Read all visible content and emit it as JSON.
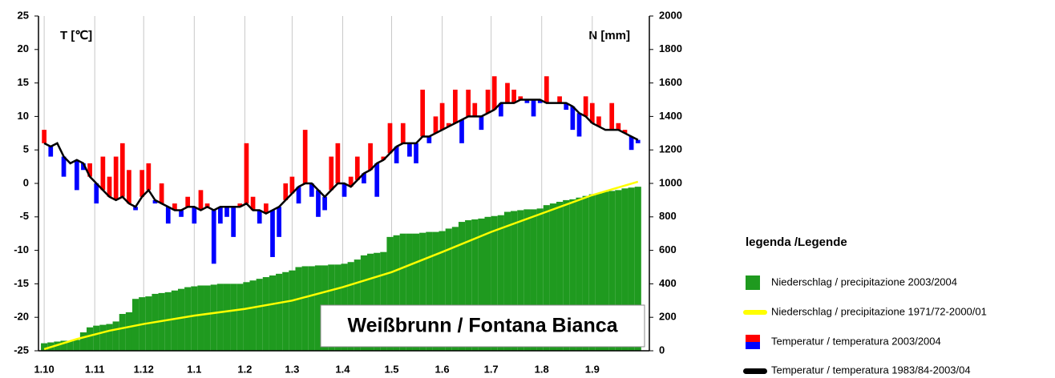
{
  "chart_data": {
    "type": "climate",
    "ylabel": "T [℃]",
    "y2label": "N [mm]",
    "annotation": "Weißbrunn / Fontana Bianca",
    "legend_title": "legenda /Legende",
    "xlim": [
      -3.5,
      371
    ],
    "xticks": [
      {
        "value": 0,
        "label": "1.10"
      },
      {
        "value": 31,
        "label": "1.11"
      },
      {
        "value": 61,
        "label": "1.12"
      },
      {
        "value": 92,
        "label": "1.1"
      },
      {
        "value": 123,
        "label": "1.2"
      },
      {
        "value": 152,
        "label": "1.3"
      },
      {
        "value": 183,
        "label": "1.4"
      },
      {
        "value": 213,
        "label": "1.5"
      },
      {
        "value": 244,
        "label": "1.6"
      },
      {
        "value": 274,
        "label": "1.7"
      },
      {
        "value": 305,
        "label": "1.8"
      },
      {
        "value": 336,
        "label": "1.9"
      }
    ],
    "ylim": [
      -25,
      25
    ],
    "yticks": [
      -25,
      -20,
      -15,
      -10,
      -5,
      0,
      5,
      10,
      15,
      20,
      25
    ],
    "y2lim": [
      0,
      2000
    ],
    "y2ticks": [
      0,
      200,
      400,
      600,
      800,
      1000,
      1200,
      1400,
      1600,
      1800,
      2000
    ],
    "grid": true,
    "x": [
      0,
      4,
      8,
      12,
      16,
      20,
      24,
      28,
      32,
      36,
      40,
      44,
      48,
      52,
      56,
      60,
      64,
      68,
      72,
      76,
      80,
      84,
      88,
      92,
      96,
      100,
      104,
      108,
      112,
      116,
      120,
      124,
      128,
      132,
      136,
      140,
      144,
      148,
      152,
      156,
      160,
      164,
      168,
      172,
      176,
      180,
      184,
      188,
      192,
      196,
      200,
      204,
      208,
      212,
      216,
      220,
      224,
      228,
      232,
      236,
      240,
      244,
      248,
      252,
      256,
      260,
      264,
      268,
      272,
      276,
      280,
      284,
      288,
      292,
      296,
      300,
      304,
      308,
      312,
      316,
      320,
      324,
      328,
      332,
      336,
      340,
      344,
      348,
      352,
      356,
      360,
      364
    ],
    "series": [
      {
        "name": "Niederschlag / precipitazione 2003/2004",
        "color": "#1f9a1f",
        "axis": "y2",
        "kind": "bar",
        "values": [
          45,
          50,
          55,
          60,
          60,
          65,
          110,
          140,
          150,
          155,
          160,
          175,
          220,
          230,
          310,
          320,
          325,
          340,
          345,
          350,
          360,
          370,
          380,
          385,
          390,
          390,
          395,
          400,
          400,
          400,
          400,
          410,
          420,
          430,
          440,
          450,
          460,
          470,
          480,
          500,
          505,
          505,
          510,
          510,
          515,
          515,
          520,
          530,
          545,
          570,
          580,
          585,
          590,
          680,
          690,
          700,
          700,
          700,
          705,
          710,
          710,
          715,
          730,
          740,
          770,
          780,
          785,
          790,
          800,
          805,
          810,
          830,
          835,
          840,
          845,
          845,
          850,
          870,
          880,
          890,
          900,
          905,
          915,
          925,
          935,
          940,
          950,
          955,
          960,
          970,
          975,
          980
        ]
      },
      {
        "name": "Niederschlag / precipitazione 1971/72-2000/01",
        "color": "#ffff00",
        "axis": "y2",
        "kind": "line",
        "x": [
          0,
          20,
          40,
          61,
          92,
          123,
          152,
          183,
          213,
          244,
          274,
          305,
          336,
          364
        ],
        "values": [
          10,
          70,
          120,
          160,
          210,
          250,
          300,
          380,
          470,
          590,
          710,
          820,
          930,
          1010
        ]
      },
      {
        "name": "Temperatur / temperatura 2003/2004",
        "colors": [
          "#ff0000",
          "#0000ff"
        ],
        "kind": "deviation",
        "values": [
          8,
          4,
          6,
          1,
          3,
          -1,
          2,
          3,
          -3,
          4,
          1,
          4,
          6,
          2,
          -4,
          2,
          3,
          -3,
          0,
          -6,
          -3,
          -5,
          -2,
          -6,
          -1,
          -3,
          -12,
          -6,
          -5,
          -8,
          -3,
          6,
          -2,
          -6,
          -3,
          -11,
          -8,
          0,
          1,
          -3,
          8,
          -2,
          -5,
          -4,
          4,
          6,
          -2,
          1,
          4,
          0,
          6,
          -2,
          4,
          9,
          3,
          9,
          4,
          3,
          14,
          6,
          10,
          12,
          9,
          14,
          6,
          14,
          12,
          8,
          14,
          16,
          10,
          15,
          14,
          13,
          12,
          10,
          12,
          16,
          12,
          13,
          11,
          8,
          7,
          13,
          12,
          10,
          8,
          12,
          9,
          8,
          5,
          6
        ]
      },
      {
        "name": "Temperatur / temperatura 1983/84-2003/04",
        "color": "#000000",
        "kind": "line",
        "values": [
          6,
          5.5,
          6,
          4,
          3,
          3.5,
          3,
          1,
          0,
          -1,
          -2,
          -2.5,
          -2,
          -3,
          -3.5,
          -2,
          -1,
          -2.5,
          -3,
          -3.5,
          -4,
          -4,
          -3.5,
          -3.5,
          -4,
          -3.5,
          -4,
          -3.5,
          -3.5,
          -3.5,
          -3.5,
          -3,
          -4,
          -4,
          -4.5,
          -4,
          -3.5,
          -2.5,
          -1.5,
          -0.5,
          0,
          0,
          -1,
          -2,
          -1,
          0,
          0,
          -0.5,
          0.5,
          1.5,
          2,
          3,
          3.5,
          4.5,
          5.5,
          6,
          6,
          6,
          7,
          7,
          7.5,
          8,
          8.5,
          9,
          9.5,
          10,
          10,
          10,
          10.5,
          11,
          12,
          12,
          12,
          12.5,
          12.5,
          12.5,
          12.5,
          12,
          12,
          12,
          12,
          11.5,
          10.5,
          10,
          9,
          8.5,
          8,
          8,
          8,
          7.5,
          7,
          6.5
        ]
      }
    ]
  }
}
